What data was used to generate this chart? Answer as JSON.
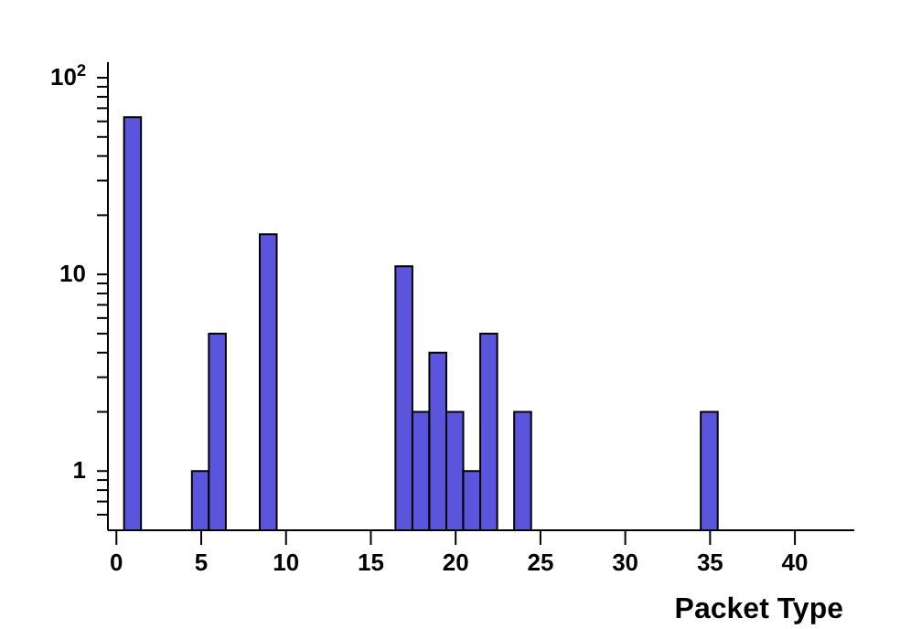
{
  "chart_data": {
    "type": "histogram",
    "xlabel": "Packet Type",
    "bins": [
      0.5,
      1.5,
      2.5,
      3.5,
      4.5,
      5.5,
      6.5,
      7.5,
      8.5,
      9.5,
      10.5,
      11.5,
      12.5,
      13.5,
      14.5,
      15.5,
      16.5,
      17.5,
      18.5,
      19.5,
      20.5,
      21.5,
      22.5,
      23.5,
      24.5,
      25.5,
      26.5,
      27.5,
      28.5,
      29.5,
      30.5,
      31.5,
      32.5,
      33.5,
      34.5,
      35.5
    ],
    "values": [
      63,
      null,
      null,
      null,
      1,
      5,
      null,
      null,
      16,
      null,
      null,
      null,
      null,
      null,
      null,
      null,
      11,
      2,
      4,
      2,
      1,
      5,
      null,
      2,
      null,
      null,
      null,
      null,
      null,
      null,
      null,
      null,
      null,
      null,
      2
    ],
    "color": "#5a55dc",
    "log": "y",
    "legend": false,
    "grid": false,
    "xlim": [
      -0.5,
      43.5
    ],
    "xticks": [
      0,
      5,
      10,
      15,
      20,
      25,
      30,
      35,
      40
    ],
    "ylim": [
      0.5,
      120
    ],
    "yticks": [
      {
        "value": 0.6,
        "label": null
      },
      {
        "value": 0.7,
        "label": null
      },
      {
        "value": 0.8,
        "label": null
      },
      {
        "value": 0.9,
        "label": null
      },
      1,
      {
        "value": 2,
        "label": null
      },
      {
        "value": 3,
        "label": null
      },
      {
        "value": 4,
        "label": null
      },
      {
        "value": 5,
        "label": null
      },
      {
        "value": 6,
        "label": null
      },
      {
        "value": 7,
        "label": null
      },
      {
        "value": 8,
        "label": null
      },
      {
        "value": 9,
        "label": null
      },
      10,
      {
        "value": 20,
        "label": null
      },
      {
        "value": 30,
        "label": null
      },
      {
        "value": 40,
        "label": null
      },
      {
        "value": 50,
        "label": null
      },
      {
        "value": 60,
        "label": null
      },
      {
        "value": 70,
        "label": null
      },
      {
        "value": 80,
        "label": null
      },
      {
        "value": 90,
        "label": null
      },
      {
        "value": 100,
        "label": "10$^{2}$"
      }
    ]
  }
}
